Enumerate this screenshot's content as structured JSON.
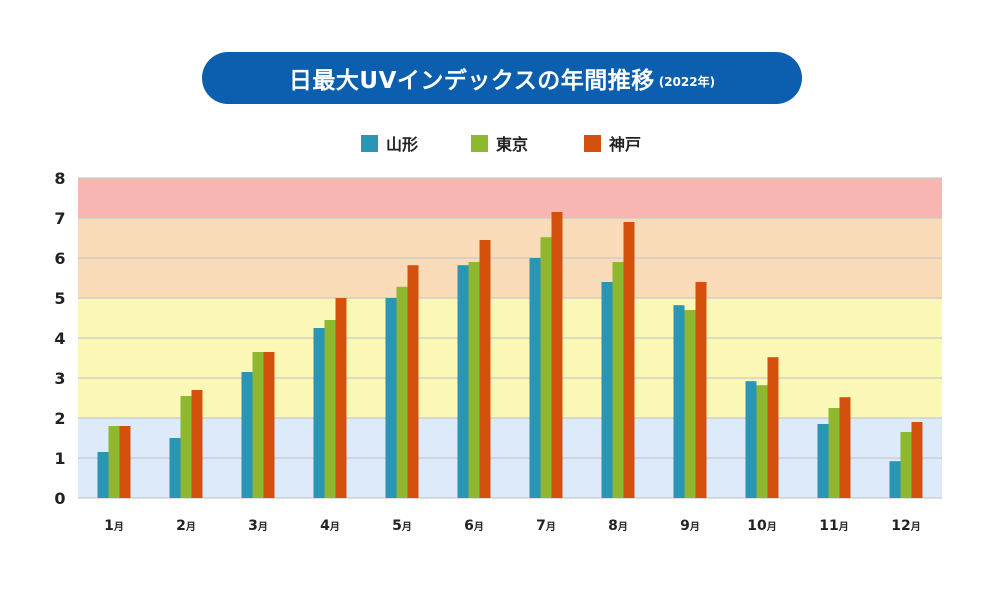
{
  "chart_data": {
    "type": "bar",
    "title": "日最大UVインデックスの年間推移",
    "subtitle": "(2022年)",
    "categories": [
      "1月",
      "2月",
      "3月",
      "4月",
      "5月",
      "6月",
      "7月",
      "8月",
      "9月",
      "10月",
      "11月",
      "12月"
    ],
    "category_month": [
      "1",
      "2",
      "3",
      "4",
      "5",
      "6",
      "7",
      "8",
      "9",
      "10",
      "11",
      "12"
    ],
    "category_suffix": "月",
    "series": [
      {
        "name": "山形",
        "color": "#2a95b5",
        "values": [
          1.15,
          1.5,
          3.15,
          4.25,
          5.0,
          5.82,
          6.0,
          5.4,
          4.82,
          2.92,
          1.85,
          0.92
        ]
      },
      {
        "name": "東京",
        "color": "#8cb92d",
        "values": [
          1.8,
          2.55,
          3.65,
          4.45,
          5.28,
          5.9,
          6.52,
          5.9,
          4.7,
          2.82,
          2.25,
          1.65
        ]
      },
      {
        "name": "神戸",
        "color": "#d3500d",
        "values": [
          1.8,
          2.7,
          3.65,
          5.0,
          5.82,
          6.45,
          7.15,
          6.9,
          5.4,
          3.52,
          2.52,
          1.9
        ]
      }
    ],
    "ylim": [
      0,
      8
    ],
    "yticks": [
      "0",
      "1",
      "2",
      "3",
      "4",
      "5",
      "6",
      "7",
      "8"
    ],
    "xlabel": "",
    "ylabel": "",
    "grid": true,
    "legend": "top-center",
    "bands": [
      {
        "from": 0,
        "to": 2,
        "color": "#dceafa"
      },
      {
        "from": 2,
        "to": 5,
        "color": "#fbf7b6"
      },
      {
        "from": 5,
        "to": 7,
        "color": "#fadbb8"
      },
      {
        "from": 7,
        "to": 8,
        "color": "#f8b6b2"
      }
    ],
    "title_color": "#0b5fae"
  }
}
